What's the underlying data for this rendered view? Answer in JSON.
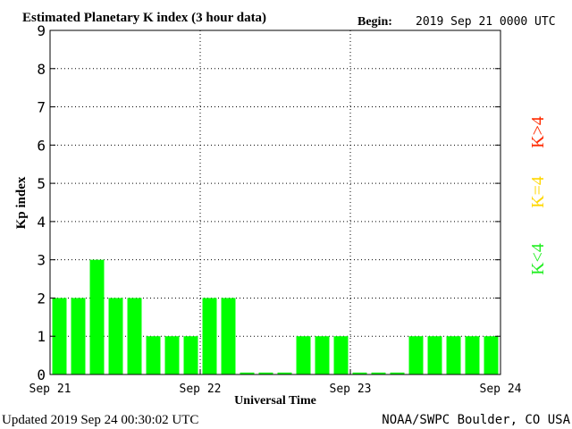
{
  "header": {
    "title": "Estimated Planetary K index (3 hour data)",
    "begin_label": "Begin:",
    "begin_value": "2019 Sep 21 0000 UTC"
  },
  "footer": {
    "updated": "Updated 2019 Sep 24 00:30:02 UTC",
    "source": "NOAA/SWPC Boulder, CO USA"
  },
  "legend": [
    {
      "label": "K>4",
      "color": "#ff2a00"
    },
    {
      "label": "K=4",
      "color": "#ffd700"
    },
    {
      "label": "K<4",
      "color": "#22ee22"
    }
  ],
  "chart_data": {
    "type": "bar",
    "title": "Estimated Planetary K index (3 hour data)",
    "xlabel": "Universal Time",
    "ylabel": "Kp index",
    "ylim": [
      0,
      9
    ],
    "yticks": [
      0,
      1,
      2,
      3,
      4,
      5,
      6,
      7,
      8,
      9
    ],
    "xticks": [
      "Sep 21",
      "Sep 22",
      "Sep 23",
      "Sep 24"
    ],
    "grid": true,
    "bar_color": "#00ff00",
    "series": [
      {
        "values": [
          2,
          2,
          3,
          2,
          2,
          1,
          1,
          1,
          2,
          2,
          0.05,
          0.05,
          0.05,
          1,
          1,
          1,
          0.05,
          0.05,
          0.05,
          1,
          1,
          1,
          1,
          1
        ]
      }
    ]
  }
}
